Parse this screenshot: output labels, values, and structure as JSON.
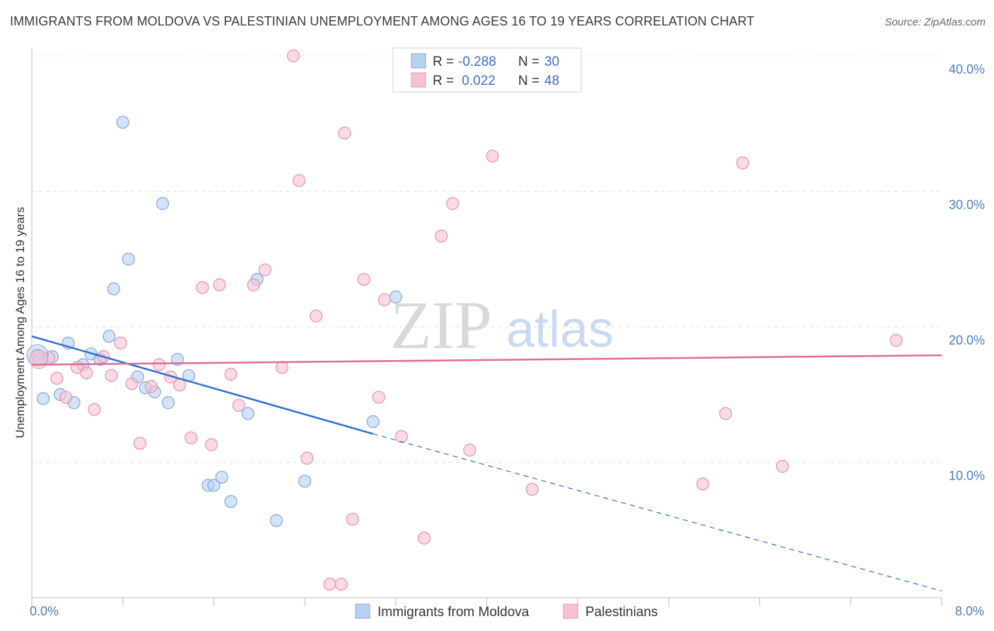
{
  "chart_data": {
    "type": "scatter",
    "title": "IMMIGRANTS FROM MOLDOVA VS PALESTINIAN UNEMPLOYMENT AMONG AGES 16 TO 19 YEARS CORRELATION CHART",
    "source": "Source: ZipAtlas.com",
    "ylabel": "Unemployment Among Ages 16 to 19 years",
    "xlim": [
      0,
      8
    ],
    "ylim": [
      0,
      40
    ],
    "x_tick_labels": [
      "0.0%",
      "8.0%"
    ],
    "y_ticks": [
      10,
      20,
      30,
      40
    ],
    "y_tick_labels": [
      "10.0%",
      "20.0%",
      "30.0%",
      "40.0%"
    ],
    "watermark": {
      "zip": "ZIP",
      "atlas": "atlas"
    },
    "legend": {
      "series1": {
        "r_label": "R =",
        "r_value": "-0.288",
        "n_label": "N =",
        "n_value": "30"
      },
      "series2": {
        "r_label": "R =",
        "r_value": " 0.022",
        "n_label": "N =",
        "n_value": "48"
      }
    },
    "series": [
      {
        "name": "Immigrants from Moldova",
        "color": "#7fa8e0",
        "fill": "#b8d0f0",
        "line_color": "#2f6fd0",
        "trend": {
          "x0": 0.0,
          "y0": 19.3,
          "x1": 3.0,
          "y1": 12.1,
          "dash_to_x": 8.0,
          "dash_to_y": 0.5
        },
        "points": [
          [
            0.05,
            17.9
          ],
          [
            0.1,
            14.7
          ],
          [
            0.18,
            17.8
          ],
          [
            0.25,
            15.0
          ],
          [
            0.32,
            18.8
          ],
          [
            0.37,
            14.4
          ],
          [
            0.45,
            17.2
          ],
          [
            0.52,
            18.0
          ],
          [
            0.6,
            17.6
          ],
          [
            0.68,
            19.3
          ],
          [
            0.72,
            22.8
          ],
          [
            0.8,
            35.1
          ],
          [
            0.85,
            25.0
          ],
          [
            0.93,
            16.3
          ],
          [
            1.0,
            15.5
          ],
          [
            1.08,
            15.2
          ],
          [
            1.15,
            29.1
          ],
          [
            1.2,
            14.4
          ],
          [
            1.28,
            17.6
          ],
          [
            1.38,
            16.4
          ],
          [
            1.55,
            8.3
          ],
          [
            1.6,
            8.3
          ],
          [
            1.67,
            8.9
          ],
          [
            1.75,
            7.1
          ],
          [
            1.9,
            13.6
          ],
          [
            1.98,
            23.5
          ],
          [
            2.15,
            5.7
          ],
          [
            2.4,
            8.6
          ],
          [
            3.0,
            13.0
          ],
          [
            3.2,
            22.2
          ]
        ]
      },
      {
        "name": "Palestinians",
        "color": "#e891ad",
        "fill": "#f6c2d3",
        "line_color": "#e06a94",
        "trend": {
          "x0": 0.0,
          "y0": 17.2,
          "x1": 8.0,
          "y1": 17.9
        },
        "points": [
          [
            0.06,
            17.6
          ],
          [
            0.15,
            17.7
          ],
          [
            0.22,
            16.2
          ],
          [
            0.3,
            14.8
          ],
          [
            0.4,
            17.0
          ],
          [
            0.48,
            16.6
          ],
          [
            0.55,
            13.9
          ],
          [
            0.63,
            17.8
          ],
          [
            0.7,
            16.4
          ],
          [
            0.78,
            18.8
          ],
          [
            0.88,
            15.8
          ],
          [
            0.95,
            11.4
          ],
          [
            1.05,
            15.6
          ],
          [
            1.12,
            17.2
          ],
          [
            1.22,
            16.3
          ],
          [
            1.3,
            15.7
          ],
          [
            1.4,
            11.8
          ],
          [
            1.5,
            22.9
          ],
          [
            1.58,
            11.3
          ],
          [
            1.65,
            23.1
          ],
          [
            1.75,
            16.5
          ],
          [
            1.82,
            14.2
          ],
          [
            1.95,
            23.1
          ],
          [
            2.05,
            24.2
          ],
          [
            2.2,
            17.0
          ],
          [
            2.3,
            40.0
          ],
          [
            2.35,
            30.8
          ],
          [
            2.42,
            10.3
          ],
          [
            2.5,
            20.8
          ],
          [
            2.62,
            1.0
          ],
          [
            2.72,
            1.0
          ],
          [
            2.75,
            34.3
          ],
          [
            2.82,
            5.8
          ],
          [
            2.92,
            23.5
          ],
          [
            3.05,
            14.8
          ],
          [
            3.1,
            22.0
          ],
          [
            3.25,
            11.9
          ],
          [
            3.45,
            4.4
          ],
          [
            3.6,
            26.7
          ],
          [
            3.7,
            29.1
          ],
          [
            3.85,
            10.9
          ],
          [
            4.05,
            32.6
          ],
          [
            4.4,
            8.0
          ],
          [
            5.9,
            8.4
          ],
          [
            6.1,
            13.6
          ],
          [
            6.25,
            32.1
          ],
          [
            6.6,
            9.7
          ],
          [
            7.6,
            19.0
          ]
        ]
      }
    ]
  }
}
